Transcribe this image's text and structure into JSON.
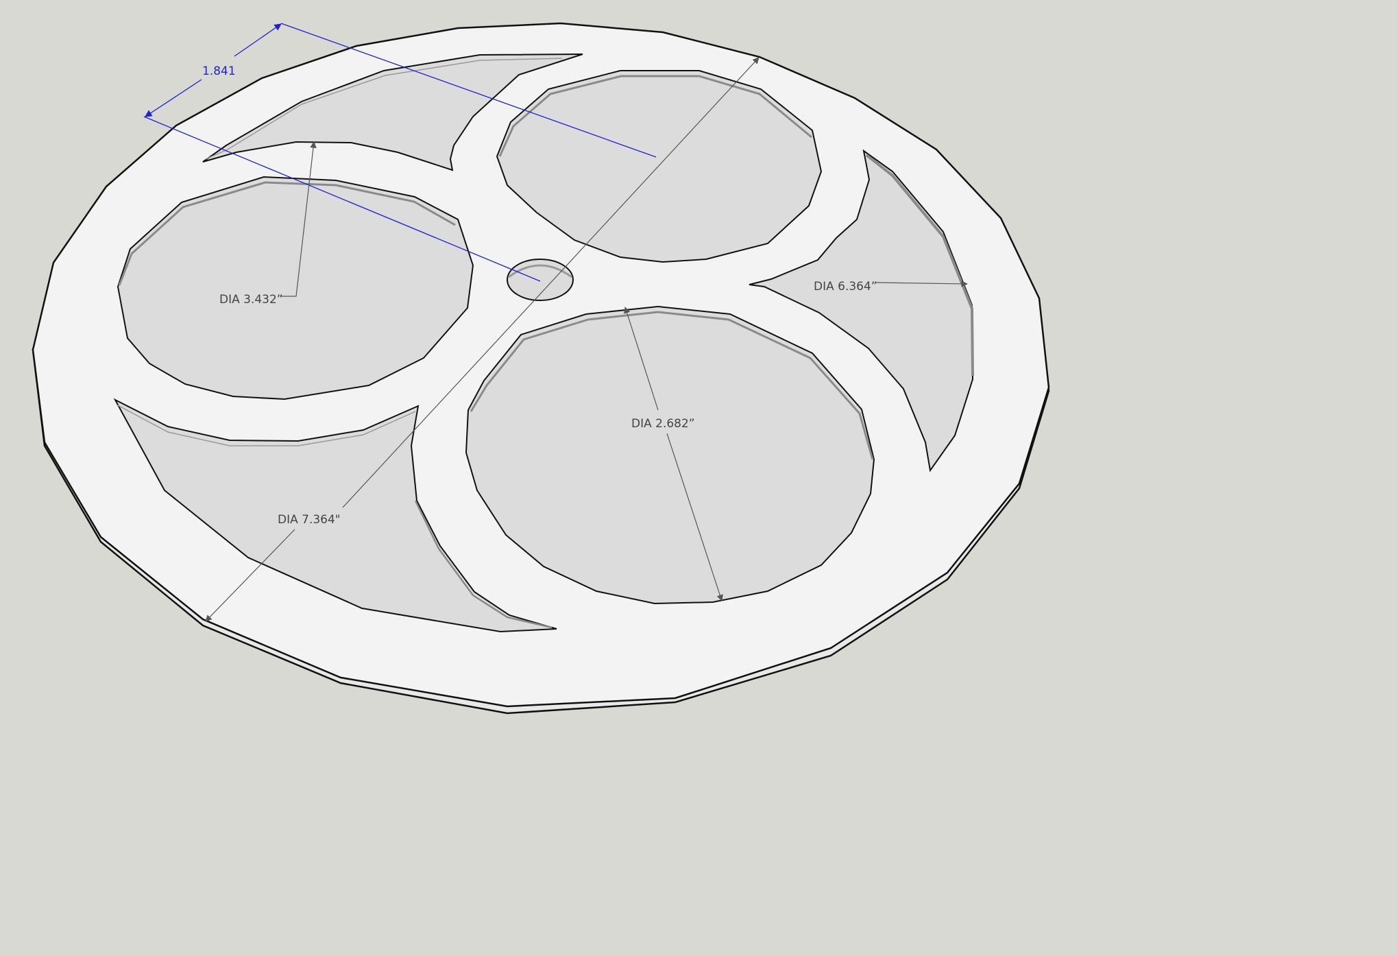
{
  "colors": {
    "background": "#d9d9d4",
    "face": "#f3f3f3",
    "cutout": "#dcdcdc",
    "edge": "#111111",
    "wall_light": "#e6e6e6",
    "wall_dark": "#8a8a8a",
    "dimension_line": "#555555",
    "dimension_blue": "#1f1fd6"
  },
  "dimensions": {
    "dim_1841": "1.841",
    "dim_dia_3432": "DIA 3.432”",
    "dim_dia_6364": "DIA 6.364”",
    "dim_dia_2682": "DIA 2.682”",
    "dim_dia_7364": "DIA 7.364\""
  }
}
